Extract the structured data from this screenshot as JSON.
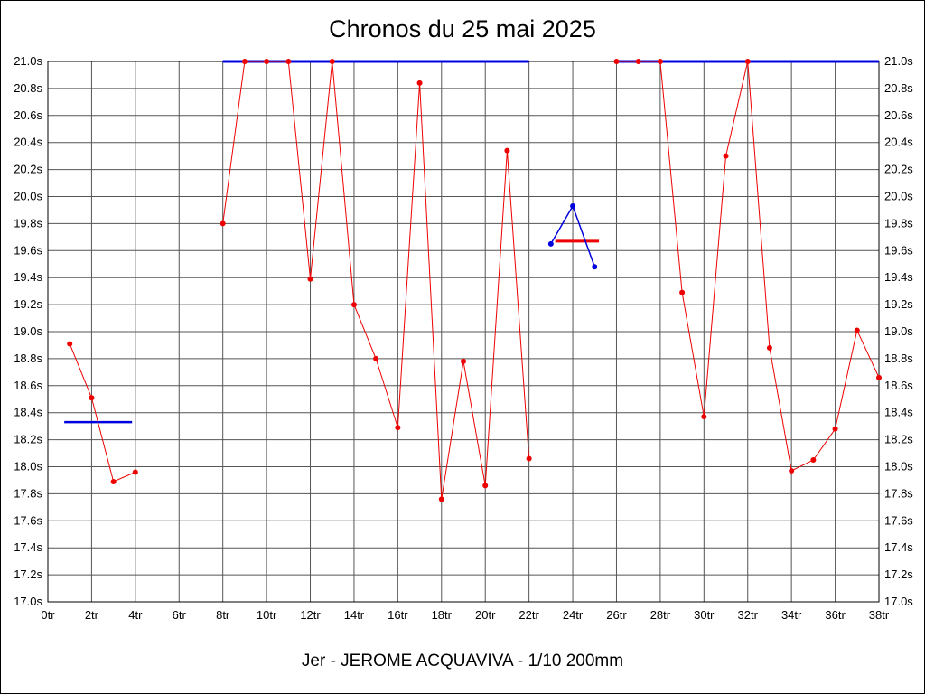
{
  "chart_data": {
    "type": "line",
    "title": "Chronos du 25 mai 2025",
    "caption": "Jer - JEROME ACQUAVIVA - 1/10 200mm",
    "xlabel": "",
    "ylabel": "",
    "xlim": [
      0,
      38
    ],
    "ylim": [
      17.0,
      21.0
    ],
    "x_tick_step": 2,
    "y_tick_step": 0.2,
    "grid": true,
    "grid_color": "#555555",
    "x_ticks": [
      "0tr",
      "2tr",
      "4tr",
      "6tr",
      "8tr",
      "10tr",
      "12tr",
      "14tr",
      "16tr",
      "18tr",
      "20tr",
      "22tr",
      "24tr",
      "26tr",
      "28tr",
      "30tr",
      "32tr",
      "34tr",
      "36tr",
      "38tr"
    ],
    "y_ticks": [
      "17.0s",
      "17.2s",
      "17.4s",
      "17.6s",
      "17.8s",
      "18.0s",
      "18.2s",
      "18.4s",
      "18.6s",
      "18.8s",
      "19.0s",
      "19.2s",
      "19.4s",
      "19.6s",
      "19.8s",
      "20.0s",
      "20.2s",
      "20.4s",
      "20.6s",
      "20.8s",
      "21.0s"
    ],
    "series": [
      {
        "name": "chronos-red",
        "color": "#ee0000",
        "line_width": 1,
        "marker_size": 3,
        "segments": [
          {
            "x": [
              1,
              2,
              3,
              4
            ],
            "y": [
              18.91,
              18.51,
              17.89,
              17.96
            ]
          },
          {
            "x": [
              8,
              9,
              10,
              11,
              12,
              13,
              14,
              15,
              16,
              17,
              18,
              19,
              20,
              21,
              22
            ],
            "y": [
              19.8,
              21.0,
              21.0,
              21.0,
              19.39,
              21.0,
              19.2,
              18.8,
              18.29,
              20.84,
              17.76,
              18.78,
              17.86,
              20.34,
              18.06
            ]
          },
          {
            "x": [
              26,
              27,
              28,
              29,
              30,
              31,
              32,
              33,
              34,
              35,
              36,
              37,
              38
            ],
            "y": [
              21.0,
              21.0,
              21.0,
              19.29,
              18.37,
              20.3,
              21.0,
              18.88,
              17.97,
              18.05,
              18.28,
              19.01,
              18.66
            ]
          }
        ]
      },
      {
        "name": "marker-blue",
        "color": "#0000dd",
        "line_width": 1.5,
        "marker_size": 3,
        "segments": [
          {
            "x": [
              23,
              24,
              25
            ],
            "y": [
              19.65,
              19.93,
              19.48
            ]
          }
        ]
      }
    ],
    "reference_lines": [
      {
        "color": "#0000dd",
        "x1": 0.75,
        "x2": 3.85,
        "y": 18.33,
        "width": 2.5
      },
      {
        "color": "#0000dd",
        "x1": 8,
        "x2": 22,
        "y": 21.0,
        "width": 3
      },
      {
        "color": "#0000dd",
        "x1": 26,
        "x2": 38,
        "y": 21.0,
        "width": 3
      },
      {
        "color": "#ee0000",
        "x1": 23.2,
        "x2": 25.2,
        "y": 19.67,
        "width": 3
      }
    ]
  }
}
